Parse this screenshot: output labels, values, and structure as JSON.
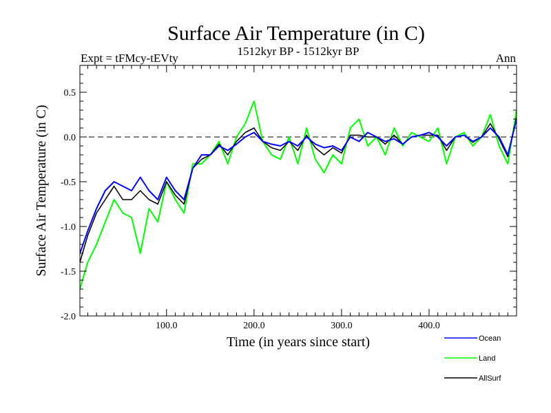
{
  "header": {
    "title": "Surface Air Temperature (in C)",
    "experiment": "Expt = tFMcy-tEVty",
    "period": "1512kyr BP - 1512kyr BP",
    "season": "Ann"
  },
  "chart_data": {
    "type": "line",
    "title": "Surface Air Temperature (in C)",
    "xlabel": "Time (in years since start)",
    "ylabel": "Surface Air Temperature (in C)",
    "xlim": [
      1,
      500
    ],
    "ylim": [
      -2.0,
      0.8
    ],
    "x_ticks": [
      100,
      200,
      300,
      400
    ],
    "x_tick_labels": [
      "100.0",
      "200.0",
      "300.0",
      "400.0"
    ],
    "y_ticks": [
      -2.0,
      -1.5,
      -1.0,
      -0.5,
      0.0,
      0.5
    ],
    "y_tick_labels": [
      "-2.0",
      "-1.5",
      "-1.0",
      "-0.5",
      "0.0",
      "0.5"
    ],
    "reference_line": 0.0,
    "legend_position": "bottom-right, outside plot",
    "x": [
      1,
      10,
      20,
      30,
      40,
      50,
      60,
      70,
      80,
      90,
      100,
      110,
      120,
      130,
      140,
      150,
      160,
      170,
      180,
      190,
      200,
      210,
      220,
      230,
      240,
      250,
      260,
      270,
      280,
      290,
      300,
      310,
      320,
      330,
      340,
      350,
      360,
      370,
      380,
      390,
      400,
      410,
      420,
      430,
      440,
      450,
      460,
      470,
      480,
      490,
      500
    ],
    "series": [
      {
        "name": "Ocean",
        "color": "#0000ff",
        "values": [
          -1.3,
          -1.05,
          -0.8,
          -0.6,
          -0.5,
          -0.55,
          -0.6,
          -0.45,
          -0.6,
          -0.7,
          -0.45,
          -0.6,
          -0.7,
          -0.35,
          -0.2,
          -0.2,
          -0.1,
          -0.15,
          -0.08,
          0.0,
          0.05,
          -0.05,
          -0.08,
          -0.1,
          -0.05,
          -0.1,
          0.0,
          -0.08,
          -0.12,
          -0.1,
          -0.15,
          0.0,
          -0.05,
          0.05,
          0.0,
          -0.05,
          -0.02,
          -0.08,
          0.0,
          0.02,
          0.05,
          0.0,
          -0.1,
          0.0,
          0.02,
          -0.05,
          0.0,
          0.1,
          0.0,
          -0.2,
          0.2
        ]
      },
      {
        "name": "Land",
        "color": "#00ff00",
        "values": [
          -1.7,
          -1.4,
          -1.2,
          -0.95,
          -0.7,
          -0.85,
          -0.9,
          -1.3,
          -0.8,
          -0.95,
          -0.5,
          -0.7,
          -0.85,
          -0.3,
          -0.3,
          -0.2,
          -0.05,
          -0.3,
          0.0,
          0.15,
          0.4,
          -0.05,
          -0.2,
          -0.25,
          0.0,
          -0.3,
          0.1,
          -0.25,
          -0.4,
          -0.2,
          -0.3,
          0.1,
          0.2,
          -0.1,
          0.0,
          -0.2,
          0.1,
          -0.1,
          0.05,
          0.0,
          -0.05,
          0.1,
          -0.3,
          0.0,
          0.05,
          -0.1,
          0.0,
          0.25,
          -0.1,
          -0.3,
          0.3
        ]
      },
      {
        "name": "AllSurf",
        "color": "#000000",
        "values": [
          -1.4,
          -1.1,
          -0.85,
          -0.7,
          -0.55,
          -0.7,
          -0.7,
          -0.6,
          -0.7,
          -0.75,
          -0.5,
          -0.65,
          -0.75,
          -0.35,
          -0.25,
          -0.2,
          -0.08,
          -0.2,
          -0.05,
          0.05,
          0.1,
          -0.05,
          -0.12,
          -0.15,
          -0.05,
          -0.15,
          0.02,
          -0.12,
          -0.2,
          -0.12,
          -0.18,
          0.02,
          0.02,
          0.0,
          0.0,
          -0.08,
          0.02,
          -0.08,
          0.0,
          0.02,
          0.02,
          0.02,
          -0.15,
          0.0,
          0.02,
          -0.06,
          0.0,
          0.15,
          -0.02,
          -0.22,
          0.22
        ]
      }
    ]
  }
}
